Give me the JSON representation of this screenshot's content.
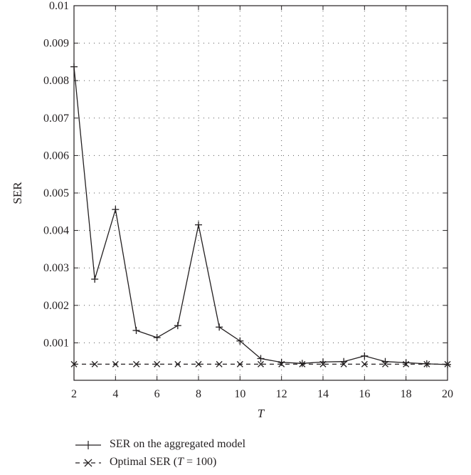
{
  "chart_data": {
    "type": "line",
    "xlabel": "T",
    "ylabel": "SER",
    "xlim": [
      2,
      20
    ],
    "ylim": [
      0,
      0.01
    ],
    "xticks": [
      2,
      4,
      6,
      8,
      10,
      12,
      14,
      16,
      18,
      20
    ],
    "yticks": [
      0.001,
      0.002,
      0.003,
      0.004,
      0.005,
      0.006,
      0.007,
      0.008,
      0.009,
      0.01
    ],
    "ytick_labels": [
      "0.001",
      "0.002",
      "0.003",
      "0.004",
      "0.005",
      "0.006",
      "0.007",
      "0.008",
      "0.009",
      "0.01"
    ],
    "grid": true,
    "legend_position": "bottom-left, below chart",
    "series": [
      {
        "name": "SER on the aggregated model",
        "marker": "+",
        "line": "solid",
        "x": [
          2,
          3,
          4,
          5,
          6,
          7,
          8,
          9,
          10,
          11,
          12,
          13,
          14,
          15,
          16,
          17,
          18,
          19,
          20
        ],
        "y": [
          0.00837,
          0.0027,
          0.00456,
          0.00133,
          0.00114,
          0.00146,
          0.00415,
          0.00142,
          0.00105,
          0.00058,
          0.00048,
          0.00045,
          0.00049,
          0.0005,
          0.00065,
          0.0005,
          0.00047,
          0.00044,
          0.00042
        ]
      },
      {
        "name": "Optimal SER (T = 100)",
        "marker": "x",
        "line": "dashed",
        "x": [
          2,
          3,
          4,
          5,
          6,
          7,
          8,
          9,
          10,
          11,
          12,
          13,
          14,
          15,
          16,
          17,
          18,
          19,
          20
        ],
        "y": [
          0.00043,
          0.00043,
          0.00043,
          0.00043,
          0.00043,
          0.00043,
          0.00043,
          0.00043,
          0.00043,
          0.00043,
          0.00043,
          0.00043,
          0.00043,
          0.00043,
          0.00043,
          0.00043,
          0.00043,
          0.00043,
          0.00043
        ]
      }
    ]
  },
  "legend": {
    "entry1": "SER on the aggregated model",
    "entry2_prefix": "Optimal SER (",
    "entry2_var": "T",
    "entry2_suffix": " = 100)"
  }
}
